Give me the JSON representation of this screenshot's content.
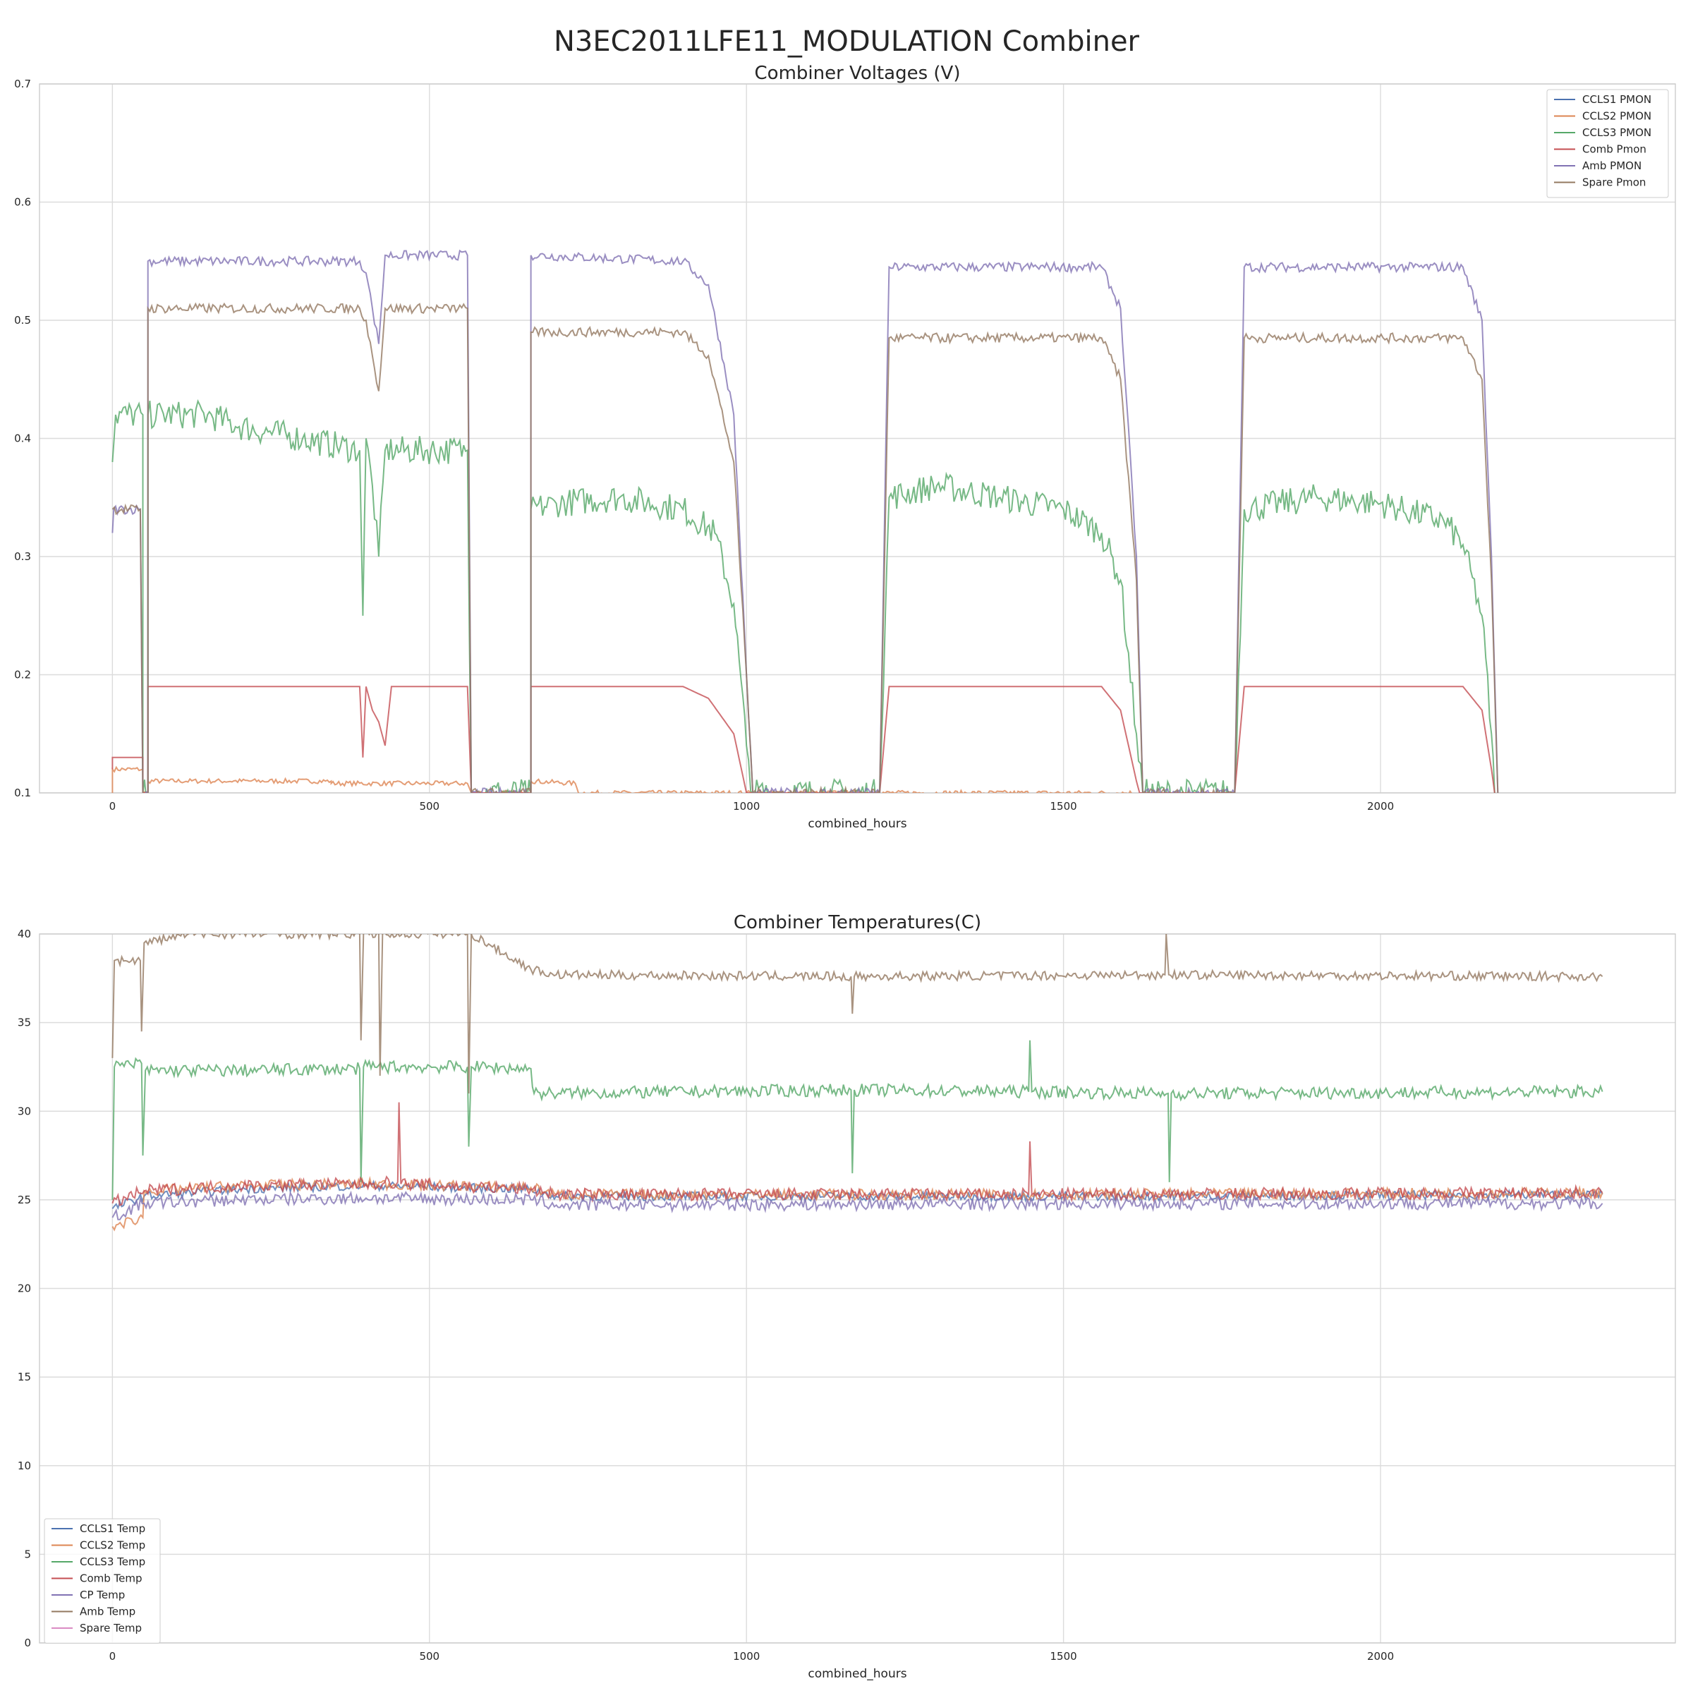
{
  "figure": {
    "title": "N3EC2011LFE11_MODULATION Combiner"
  },
  "chart_data": [
    {
      "type": "line",
      "title": "Combiner Voltages (V)",
      "xlabel": "combined_hours",
      "ylabel": "",
      "xlim": [
        -115,
        2465
      ],
      "ylim": [
        0.1,
        0.7
      ],
      "xticks": [
        "0",
        "500",
        "1000",
        "1500",
        "2000"
      ],
      "yticks": [
        "0.1",
        "0.2",
        "0.3",
        "0.4",
        "0.5",
        "0.6",
        "0.7"
      ],
      "grid": true,
      "legend_position": "top-right",
      "series": [
        {
          "name": "CCLS1 PMON",
          "color": "#4c72b0",
          "points": []
        },
        {
          "name": "CCLS2 PMON",
          "color": "#dd8452",
          "noise": 0.002,
          "points": [
            [
              0,
              0.1
            ],
            [
              0,
              0.12
            ],
            [
              48,
              0.12
            ],
            [
              48,
              0.1
            ],
            [
              56,
              0.1
            ],
            [
              56,
              0.11
            ],
            [
              345,
              0.11
            ],
            [
              345,
              0.108
            ],
            [
              560,
              0.108
            ],
            [
              566,
              0.1
            ],
            [
              660,
              0.1
            ],
            [
              660,
              0.11
            ],
            [
              730,
              0.108
            ],
            [
              735,
              0.1
            ],
            [
              1000,
              0.1
            ],
            [
              1620,
              0.1
            ]
          ]
        },
        {
          "name": "CCLS3 PMON",
          "color": "#55a868",
          "noise": 0.012,
          "points": [
            [
              0,
              0.38
            ],
            [
              5,
              0.42
            ],
            [
              48,
              0.42
            ],
            [
              48,
              0.1
            ],
            [
              56,
              0.1
            ],
            [
              56,
              0.42
            ],
            [
              150,
              0.42
            ],
            [
              200,
              0.41
            ],
            [
              300,
              0.4
            ],
            [
              390,
              0.39
            ],
            [
              395,
              0.25
            ],
            [
              400,
              0.4
            ],
            [
              410,
              0.36
            ],
            [
              420,
              0.3
            ],
            [
              430,
              0.39
            ],
            [
              560,
              0.39
            ],
            [
              566,
              0.1
            ],
            [
              660,
              0.1
            ],
            [
              660,
              0.34
            ],
            [
              700,
              0.345
            ],
            [
              800,
              0.35
            ],
            [
              900,
              0.34
            ],
            [
              950,
              0.32
            ],
            [
              980,
              0.26
            ],
            [
              1000,
              0.14
            ],
            [
              1010,
              0.1
            ],
            [
              1210,
              0.1
            ],
            [
              1225,
              0.35
            ],
            [
              1300,
              0.36
            ],
            [
              1400,
              0.35
            ],
            [
              1500,
              0.34
            ],
            [
              1560,
              0.32
            ],
            [
              1590,
              0.28
            ],
            [
              1615,
              0.15
            ],
            [
              1625,
              0.1
            ],
            [
              1770,
              0.1
            ],
            [
              1785,
              0.34
            ],
            [
              1900,
              0.35
            ],
            [
              2000,
              0.345
            ],
            [
              2100,
              0.33
            ],
            [
              2130,
              0.31
            ],
            [
              2160,
              0.25
            ],
            [
              2175,
              0.15
            ],
            [
              2180,
              0.1
            ]
          ]
        },
        {
          "name": "Comb Pmon",
          "color": "#c44e52",
          "noise": 0.0,
          "points": [
            [
              0,
              0.12
            ],
            [
              0,
              0.13
            ],
            [
              48,
              0.13
            ],
            [
              48,
              0.1
            ],
            [
              56,
              0.1
            ],
            [
              56,
              0.19
            ],
            [
              390,
              0.19
            ],
            [
              395,
              0.13
            ],
            [
              400,
              0.19
            ],
            [
              410,
              0.17
            ],
            [
              420,
              0.16
            ],
            [
              430,
              0.14
            ],
            [
              440,
              0.19
            ],
            [
              560,
              0.19
            ],
            [
              566,
              0.1
            ],
            [
              660,
              0.1
            ],
            [
              660,
              0.19
            ],
            [
              900,
              0.19
            ],
            [
              940,
              0.18
            ],
            [
              980,
              0.15
            ],
            [
              1000,
              0.1
            ],
            [
              1210,
              0.1
            ],
            [
              1225,
              0.19
            ],
            [
              1560,
              0.19
            ],
            [
              1590,
              0.17
            ],
            [
              1615,
              0.11
            ],
            [
              1620,
              0.1
            ],
            [
              1770,
              0.1
            ],
            [
              1785,
              0.19
            ],
            [
              2130,
              0.19
            ],
            [
              2160,
              0.17
            ],
            [
              2175,
              0.12
            ],
            [
              2180,
              0.1
            ]
          ]
        },
        {
          "name": "Amb PMON",
          "color": "#8172b3",
          "noise": 0.004,
          "points": [
            [
              0,
              0.32
            ],
            [
              2,
              0.34
            ],
            [
              44,
              0.34
            ],
            [
              48,
              0.1
            ],
            [
              56,
              0.1
            ],
            [
              56,
              0.55
            ],
            [
              390,
              0.55
            ],
            [
              400,
              0.54
            ],
            [
              410,
              0.51
            ],
            [
              420,
              0.48
            ],
            [
              430,
              0.555
            ],
            [
              560,
              0.555
            ],
            [
              566,
              0.1
            ],
            [
              660,
              0.1
            ],
            [
              660,
              0.555
            ],
            [
              900,
              0.55
            ],
            [
              940,
              0.53
            ],
            [
              980,
              0.42
            ],
            [
              1000,
              0.2
            ],
            [
              1010,
              0.1
            ],
            [
              1210,
              0.1
            ],
            [
              1225,
              0.545
            ],
            [
              1560,
              0.545
            ],
            [
              1590,
              0.51
            ],
            [
              1615,
              0.3
            ],
            [
              1625,
              0.1
            ],
            [
              1770,
              0.1
            ],
            [
              1785,
              0.545
            ],
            [
              2130,
              0.545
            ],
            [
              2160,
              0.5
            ],
            [
              2175,
              0.3
            ],
            [
              2185,
              0.1
            ]
          ]
        },
        {
          "name": "Spare Pmon",
          "color": "#937860",
          "noise": 0.004,
          "points": [
            [
              0,
              0.34
            ],
            [
              44,
              0.34
            ],
            [
              48,
              0.1
            ],
            [
              56,
              0.1
            ],
            [
              56,
              0.51
            ],
            [
              390,
              0.51
            ],
            [
              400,
              0.5
            ],
            [
              410,
              0.47
            ],
            [
              420,
              0.44
            ],
            [
              430,
              0.51
            ],
            [
              560,
              0.51
            ],
            [
              566,
              0.1
            ],
            [
              660,
              0.1
            ],
            [
              660,
              0.49
            ],
            [
              900,
              0.49
            ],
            [
              940,
              0.47
            ],
            [
              980,
              0.38
            ],
            [
              1000,
              0.2
            ],
            [
              1010,
              0.1
            ],
            [
              1210,
              0.1
            ],
            [
              1225,
              0.485
            ],
            [
              1560,
              0.485
            ],
            [
              1590,
              0.45
            ],
            [
              1615,
              0.28
            ],
            [
              1625,
              0.1
            ],
            [
              1770,
              0.1
            ],
            [
              1785,
              0.485
            ],
            [
              2130,
              0.485
            ],
            [
              2160,
              0.45
            ],
            [
              2175,
              0.28
            ],
            [
              2185,
              0.1
            ]
          ]
        }
      ]
    },
    {
      "type": "line",
      "title": "Combiner Temperatures(C)",
      "xlabel": "combined_hours",
      "ylabel": "",
      "xlim": [
        -115,
        2465
      ],
      "ylim": [
        0,
        40
      ],
      "xticks": [
        "0",
        "500",
        "1000",
        "1500",
        "2000"
      ],
      "yticks": [
        "0",
        "5",
        "10",
        "15",
        "20",
        "25",
        "30",
        "35",
        "40"
      ],
      "grid": true,
      "legend_position": "bottom-left",
      "series": [
        {
          "name": "CCLS1 Temp",
          "color": "#4c72b0",
          "noise": 0.25,
          "points": [
            [
              0,
              24.5
            ],
            [
              50,
              25.2
            ],
            [
              200,
              25.6
            ],
            [
              400,
              25.8
            ],
            [
              660,
              25.6
            ],
            [
              700,
              25.2
            ],
            [
              1500,
              25.2
            ],
            [
              2350,
              25.3
            ]
          ]
        },
        {
          "name": "CCLS2 Temp",
          "color": "#dd8452",
          "noise": 0.3,
          "points": [
            [
              0,
              23.5
            ],
            [
              48,
              24
            ],
            [
              50,
              25.5
            ],
            [
              200,
              25.8
            ],
            [
              400,
              25.9
            ],
            [
              660,
              25.7
            ],
            [
              700,
              25.3
            ],
            [
              1500,
              25.3
            ],
            [
              2350,
              25.4
            ]
          ]
        },
        {
          "name": "CCLS3 Temp",
          "color": "#55a868",
          "noise": 0.35,
          "points": [
            [
              0,
              25
            ],
            [
              3,
              32.5
            ],
            [
              46,
              32.7
            ],
            [
              48,
              27.5
            ],
            [
              52,
              32.3
            ],
            [
              200,
              32.3
            ],
            [
              390,
              32.4
            ],
            [
              392,
              26
            ],
            [
              396,
              32.5
            ],
            [
              560,
              32.5
            ],
            [
              562,
              28
            ],
            [
              566,
              32.5
            ],
            [
              660,
              32.4
            ],
            [
              665,
              31
            ],
            [
              1165,
              31.2
            ],
            [
              1167,
              26.5
            ],
            [
              1170,
              31.2
            ],
            [
              1445,
              31.1
            ],
            [
              1447,
              34
            ],
            [
              1450,
              31.1
            ],
            [
              1665,
              31
            ],
            [
              1667,
              26
            ],
            [
              1670,
              31
            ],
            [
              2350,
              31.1
            ]
          ]
        },
        {
          "name": "Comb Temp",
          "color": "#c44e52",
          "noise": 0.35,
          "points": [
            [
              0,
              24.8
            ],
            [
              50,
              25.5
            ],
            [
              200,
              25.8
            ],
            [
              400,
              25.9
            ],
            [
              450,
              26
            ],
            [
              452,
              30.5
            ],
            [
              455,
              25.9
            ],
            [
              660,
              25.6
            ],
            [
              700,
              25.3
            ],
            [
              1445,
              25.3
            ],
            [
              1447,
              28.3
            ],
            [
              1450,
              25.3
            ],
            [
              2350,
              25.4
            ]
          ]
        },
        {
          "name": "CP Temp",
          "color": "#8172b3",
          "noise": 0.35,
          "points": [
            [
              0,
              24
            ],
            [
              50,
              24.8
            ],
            [
              200,
              25
            ],
            [
              400,
              25.1
            ],
            [
              660,
              25
            ],
            [
              700,
              24.7
            ],
            [
              1500,
              24.8
            ],
            [
              2350,
              24.8
            ]
          ]
        },
        {
          "name": "Amb Temp",
          "color": "#937860",
          "noise": 0.25,
          "points": [
            [
              0,
              33
            ],
            [
              3,
              38.5
            ],
            [
              44,
              38.5
            ],
            [
              46,
              34.5
            ],
            [
              50,
              39.5
            ],
            [
              120,
              40
            ],
            [
              390,
              40
            ],
            [
              392,
              34
            ],
            [
              396,
              40
            ],
            [
              420,
              40
            ],
            [
              422,
              32
            ],
            [
              426,
              40
            ],
            [
              560,
              40
            ],
            [
              562,
              31
            ],
            [
              566,
              40
            ],
            [
              660,
              38
            ],
            [
              700,
              37.7
            ],
            [
              1165,
              37.6
            ],
            [
              1167,
              35.5
            ],
            [
              1170,
              37.6
            ],
            [
              1660,
              37.7
            ],
            [
              1662,
              40
            ],
            [
              1666,
              37.7
            ],
            [
              2350,
              37.6
            ]
          ]
        },
        {
          "name": "Spare Temp",
          "color": "#da8bc3",
          "noise": 0.0,
          "points": []
        }
      ]
    }
  ]
}
